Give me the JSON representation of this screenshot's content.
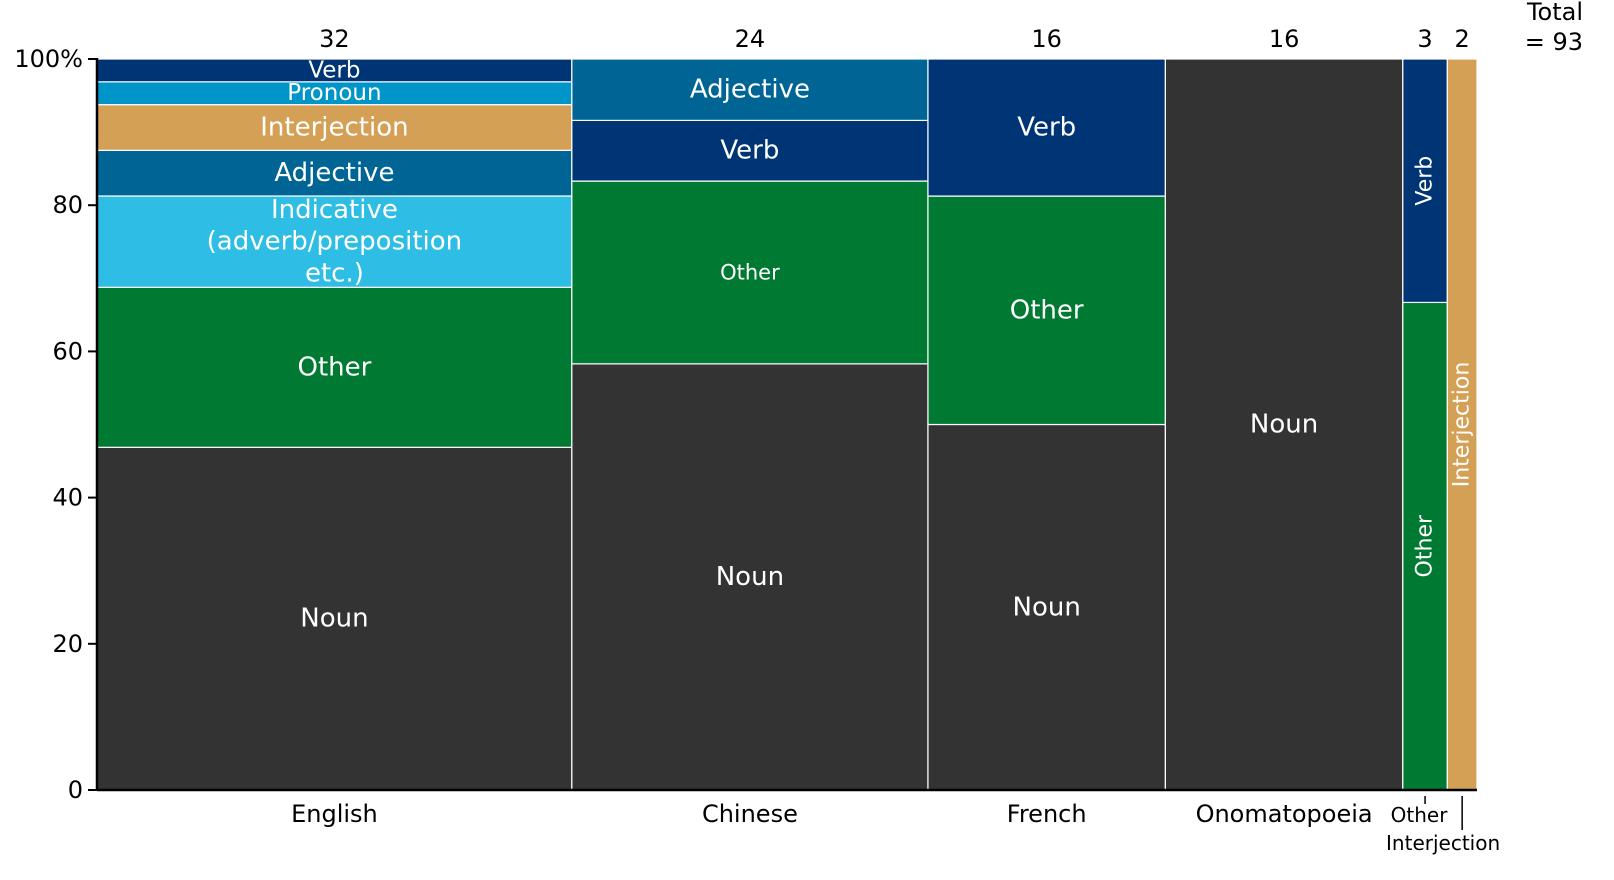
{
  "chart_data": {
    "type": "mosaic",
    "y_ticks": [
      {
        "value": 0,
        "label": "0"
      },
      {
        "value": 20,
        "label": "20"
      },
      {
        "value": 40,
        "label": "40"
      },
      {
        "value": 60,
        "label": "60"
      },
      {
        "value": 80,
        "label": "80"
      },
      {
        "value": 100,
        "label": "100%"
      }
    ],
    "ylim": [
      0,
      100
    ],
    "total_label": [
      "Total",
      "= 93"
    ],
    "colors": {
      "Noun": "#333333",
      "Other": "#007a33",
      "Indicative (adverb/preposition etc.)": "#2ebde5",
      "Adjective": "#006494",
      "Interjection": "#d4a055",
      "Pronoun": "#0095c8",
      "Verb": "#003575"
    },
    "categories": [
      {
        "name": "English",
        "label": "English",
        "count": 32,
        "count_label": "32",
        "segments": [
          {
            "name": "Noun",
            "value": 46.9,
            "label": [
              "Noun"
            ]
          },
          {
            "name": "Other",
            "value": 21.9,
            "label": [
              "Other"
            ]
          },
          {
            "name": "Indicative (adverb/preposition etc.)",
            "value": 12.5,
            "label": [
              "Indicative",
              "(adverb/preposition",
              "etc.)"
            ]
          },
          {
            "name": "Adjective",
            "value": 6.25,
            "label": [
              "Adjective"
            ]
          },
          {
            "name": "Interjection",
            "value": 6.25,
            "label": [
              "Interjection"
            ]
          },
          {
            "name": "Pronoun",
            "value": 3.125,
            "label": [
              "Pronoun"
            ]
          },
          {
            "name": "Verb",
            "value": 3.125,
            "label": [
              "Verb"
            ]
          }
        ]
      },
      {
        "name": "Chinese",
        "label": "Chinese",
        "count": 24,
        "count_label": "24",
        "segments": [
          {
            "name": "Noun",
            "value": 58.3,
            "label": [
              "Noun"
            ]
          },
          {
            "name": "Other",
            "value": 25.0,
            "label": [
              "Other"
            ]
          },
          {
            "name": "Verb",
            "value": 8.3,
            "label": [
              "Verb"
            ]
          },
          {
            "name": "Adjective",
            "value": 8.4,
            "label": [
              "Adjective"
            ]
          }
        ]
      },
      {
        "name": "French",
        "label": "French",
        "count": 16,
        "count_label": "16",
        "segments": [
          {
            "name": "Noun",
            "value": 50.0,
            "label": [
              "Noun"
            ]
          },
          {
            "name": "Other",
            "value": 31.25,
            "label": [
              "Other"
            ]
          },
          {
            "name": "Verb",
            "value": 18.75,
            "label": [
              "Verb"
            ]
          }
        ]
      },
      {
        "name": "Onomatopoeia",
        "label": "Onomatopoeia",
        "count": 16,
        "count_label": "16",
        "segments": [
          {
            "name": "Noun",
            "value": 100,
            "label": [
              "Noun"
            ]
          }
        ]
      },
      {
        "name": "Other",
        "label": "Other",
        "count": 3,
        "count_label": "3",
        "segments": [
          {
            "name": "Other",
            "value": 66.7,
            "label": [
              "Other"
            ]
          },
          {
            "name": "Verb",
            "value": 33.3,
            "label": [
              "Verb"
            ]
          }
        ]
      },
      {
        "name": "Interjection",
        "label": "Interjection",
        "count": 2,
        "count_label": "2",
        "segments": [
          {
            "name": "Interjection",
            "value": 100,
            "label": [
              "Interjection"
            ]
          }
        ]
      }
    ]
  }
}
